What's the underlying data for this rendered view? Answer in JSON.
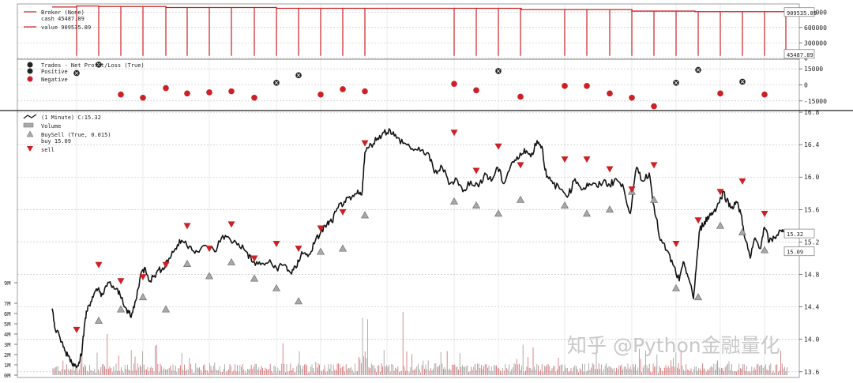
{
  "watermark": "知乎 @Python金融量化",
  "chart_data": [
    {
      "name": "broker",
      "type": "line",
      "legend": [
        "Broker (None)",
        "cash 45487.89",
        "value 909535.89"
      ],
      "value_label": "909535.89",
      "cash_label": "45487.89",
      "yticks": [
        0,
        300000,
        600000,
        900000
      ],
      "ytick_labels": [
        "0",
        "300000",
        "600000",
        "900000"
      ],
      "ylim": [
        -20000,
        1060000
      ],
      "value_segments": [
        {
          "x": [
            66,
            97
          ],
          "y": 1000000
        },
        {
          "x": [
            97,
            125
          ],
          "y": 1020000
        },
        {
          "x": [
            125,
            210
          ],
          "y": 1010000
        },
        {
          "x": [
            210,
            350
          ],
          "y": 990000
        },
        {
          "x": [
            350,
            490
          ],
          "y": 975000
        },
        {
          "x": [
            490,
            660
          ],
          "y": 975000
        },
        {
          "x": [
            660,
            800
          ],
          "y": 950000
        },
        {
          "x": [
            800,
            880
          ],
          "y": 920000
        },
        {
          "x": [
            880,
            995
          ],
          "y": 909535.89
        }
      ],
      "cash_dips": [
        97,
        125,
        153,
        181,
        210,
        237,
        265,
        293,
        322,
        350,
        378,
        406,
        434,
        462,
        575,
        603,
        631,
        659,
        715,
        743,
        772,
        800,
        828,
        856,
        884,
        912,
        940,
        968
      ]
    },
    {
      "name": "trades",
      "type": "scatter",
      "legend": [
        "Trades - Net Profit/Loss (True)",
        "Positive",
        "Negative"
      ],
      "yticks": [
        -15000,
        0,
        15000
      ],
      "ytick_labels": [
        "-15000",
        "0",
        "15000"
      ],
      "ylim": [
        -24000,
        24000
      ],
      "positive": [
        [
          97,
          11000
        ],
        [
          125,
          19000
        ],
        [
          350,
          2000
        ],
        [
          378,
          9000
        ],
        [
          631,
          13000
        ],
        [
          856,
          2000
        ],
        [
          884,
          14000
        ],
        [
          940,
          3000
        ]
      ],
      "negative": [
        [
          153,
          -9000
        ],
        [
          181,
          -12000
        ],
        [
          210,
          -3000
        ],
        [
          237,
          -8000
        ],
        [
          265,
          -7000
        ],
        [
          293,
          -6000
        ],
        [
          322,
          -12000
        ],
        [
          406,
          -9000
        ],
        [
          434,
          -4000
        ],
        [
          462,
          -6000
        ],
        [
          575,
          1000
        ],
        [
          603,
          -5000
        ],
        [
          659,
          -11000
        ],
        [
          715,
          -1000
        ],
        [
          743,
          -1000
        ],
        [
          772,
          -8000
        ],
        [
          800,
          -12000
        ],
        [
          828,
          -20000
        ],
        [
          912,
          -8000
        ],
        [
          968,
          -9000
        ]
      ]
    },
    {
      "name": "price",
      "type": "line",
      "legend": [
        "(1 Minute) C:15.32",
        "Volume",
        "BuySell (True, 0.015)",
        "buy 15.09",
        "sell"
      ],
      "last_close": "15.32",
      "last_buy": "15.09",
      "yticks": [
        13.6,
        14.0,
        14.4,
        14.8,
        15.2,
        15.6,
        16.0,
        16.4,
        16.8
      ],
      "ytick_labels": [
        "13.6",
        "14.0",
        "14.4",
        "14.8",
        "15.2",
        "15.6",
        "16.0",
        "16.4",
        "16.8"
      ],
      "ylim": [
        13.53,
        16.82
      ],
      "volume_ticks": [
        "0M",
        "1M",
        "2M",
        "3M",
        "4M",
        "5M",
        "6M",
        "7M",
        "9M"
      ],
      "close_path": [
        [
          66,
          14.38
        ],
        [
          70,
          14.12
        ],
        [
          76,
          14.02
        ],
        [
          82,
          13.86
        ],
        [
          88,
          13.78
        ],
        [
          94,
          13.67
        ],
        [
          100,
          13.72
        ],
        [
          104,
          13.87
        ],
        [
          108,
          14.26
        ],
        [
          112,
          14.42
        ],
        [
          118,
          14.52
        ],
        [
          124,
          14.62
        ],
        [
          130,
          14.55
        ],
        [
          138,
          14.7
        ],
        [
          146,
          14.62
        ],
        [
          152,
          14.55
        ],
        [
          160,
          14.38
        ],
        [
          166,
          14.27
        ],
        [
          172,
          14.48
        ],
        [
          178,
          14.8
        ],
        [
          184,
          14.88
        ],
        [
          190,
          14.72
        ],
        [
          198,
          14.82
        ],
        [
          206,
          14.88
        ],
        [
          214,
          15.0
        ],
        [
          222,
          15.12
        ],
        [
          230,
          15.22
        ],
        [
          240,
          15.15
        ],
        [
          250,
          15.08
        ],
        [
          262,
          15.15
        ],
        [
          272,
          15.08
        ],
        [
          282,
          15.28
        ],
        [
          292,
          15.22
        ],
        [
          302,
          15.18
        ],
        [
          312,
          15.08
        ],
        [
          320,
          14.95
        ],
        [
          330,
          14.92
        ],
        [
          340,
          14.95
        ],
        [
          350,
          14.88
        ],
        [
          360,
          14.92
        ],
        [
          368,
          14.82
        ],
        [
          375,
          14.88
        ],
        [
          382,
          15.08
        ],
        [
          390,
          15.02
        ],
        [
          398,
          15.18
        ],
        [
          406,
          15.32
        ],
        [
          414,
          15.42
        ],
        [
          420,
          15.45
        ],
        [
          428,
          15.62
        ],
        [
          436,
          15.7
        ],
        [
          444,
          15.72
        ],
        [
          452,
          15.8
        ],
        [
          458,
          15.78
        ],
        [
          462,
          16.3
        ],
        [
          470,
          16.4
        ],
        [
          478,
          16.48
        ],
        [
          486,
          16.55
        ],
        [
          494,
          16.58
        ],
        [
          502,
          16.48
        ],
        [
          512,
          16.42
        ],
        [
          522,
          16.35
        ],
        [
          532,
          16.32
        ],
        [
          542,
          16.3
        ],
        [
          550,
          16.05
        ],
        [
          560,
          16.12
        ],
        [
          570,
          15.92
        ],
        [
          578,
          15.98
        ],
        [
          586,
          15.82
        ],
        [
          596,
          15.95
        ],
        [
          606,
          15.88
        ],
        [
          614,
          16.05
        ],
        [
          622,
          15.95
        ],
        [
          630,
          16.12
        ],
        [
          638,
          15.92
        ],
        [
          648,
          16.18
        ],
        [
          656,
          16.22
        ],
        [
          664,
          16.35
        ],
        [
          672,
          16.25
        ],
        [
          680,
          16.45
        ],
        [
          686,
          16.38
        ],
        [
          692,
          16.0
        ],
        [
          700,
          15.92
        ],
        [
          710,
          15.85
        ],
        [
          720,
          15.78
        ],
        [
          728,
          15.98
        ],
        [
          738,
          15.85
        ],
        [
          746,
          15.92
        ],
        [
          756,
          15.88
        ],
        [
          764,
          15.95
        ],
        [
          772,
          15.9
        ],
        [
          780,
          15.98
        ],
        [
          790,
          15.85
        ],
        [
          798,
          15.55
        ],
        [
          806,
          16.12
        ],
        [
          814,
          15.95
        ],
        [
          822,
          16.05
        ],
        [
          828,
          15.65
        ],
        [
          836,
          15.22
        ],
        [
          844,
          15.1
        ],
        [
          852,
          14.92
        ],
        [
          860,
          14.72
        ],
        [
          866,
          14.95
        ],
        [
          872,
          14.75
        ],
        [
          878,
          14.5
        ],
        [
          882,
          14.95
        ],
        [
          886,
          15.35
        ],
        [
          892,
          15.45
        ],
        [
          898,
          15.52
        ],
        [
          904,
          15.58
        ],
        [
          910,
          15.68
        ],
        [
          916,
          15.82
        ],
        [
          920,
          15.72
        ],
        [
          926,
          15.62
        ],
        [
          932,
          15.7
        ],
        [
          938,
          15.55
        ],
        [
          944,
          15.22
        ],
        [
          950,
          15.0
        ],
        [
          956,
          15.25
        ],
        [
          962,
          15.12
        ],
        [
          968,
          15.38
        ],
        [
          974,
          15.2
        ],
        [
          980,
          15.25
        ],
        [
          986,
          15.32
        ],
        [
          992,
          15.32
        ]
      ],
      "buy_signals": [
        [
          125,
          14.23
        ],
        [
          153,
          14.37
        ],
        [
          181,
          14.52
        ],
        [
          210,
          14.37
        ],
        [
          237,
          14.93
        ],
        [
          265,
          14.78
        ],
        [
          293,
          14.95
        ],
        [
          322,
          14.75
        ],
        [
          350,
          14.63
        ],
        [
          378,
          14.47
        ],
        [
          406,
          15.08
        ],
        [
          434,
          15.12
        ],
        [
          462,
          15.53
        ],
        [
          575,
          15.7
        ],
        [
          603,
          15.65
        ],
        [
          631,
          15.55
        ],
        [
          659,
          15.72
        ],
        [
          715,
          15.65
        ],
        [
          743,
          15.55
        ],
        [
          772,
          15.6
        ],
        [
          800,
          15.82
        ],
        [
          828,
          15.72
        ],
        [
          856,
          14.63
        ],
        [
          884,
          14.52
        ],
        [
          912,
          15.4
        ],
        [
          940,
          15.32
        ],
        [
          968,
          15.1
        ]
      ],
      "sell_signals": [
        [
          97,
          14.12
        ],
        [
          125,
          14.92
        ],
        [
          153,
          14.72
        ],
        [
          181,
          14.77
        ],
        [
          210,
          14.92
        ],
        [
          237,
          15.4
        ],
        [
          265,
          15.12
        ],
        [
          293,
          15.42
        ],
        [
          322,
          15.0
        ],
        [
          350,
          15.18
        ],
        [
          378,
          15.12
        ],
        [
          406,
          15.37
        ],
        [
          434,
          15.57
        ],
        [
          462,
          16.42
        ],
        [
          575,
          16.55
        ],
        [
          603,
          16.08
        ],
        [
          631,
          16.38
        ],
        [
          659,
          16.15
        ],
        [
          715,
          16.22
        ],
        [
          743,
          16.22
        ],
        [
          772,
          16.1
        ],
        [
          800,
          15.85
        ],
        [
          828,
          16.15
        ],
        [
          856,
          15.18
        ],
        [
          884,
          15.47
        ],
        [
          912,
          15.82
        ],
        [
          940,
          15.95
        ],
        [
          968,
          15.55
        ]
      ]
    }
  ]
}
